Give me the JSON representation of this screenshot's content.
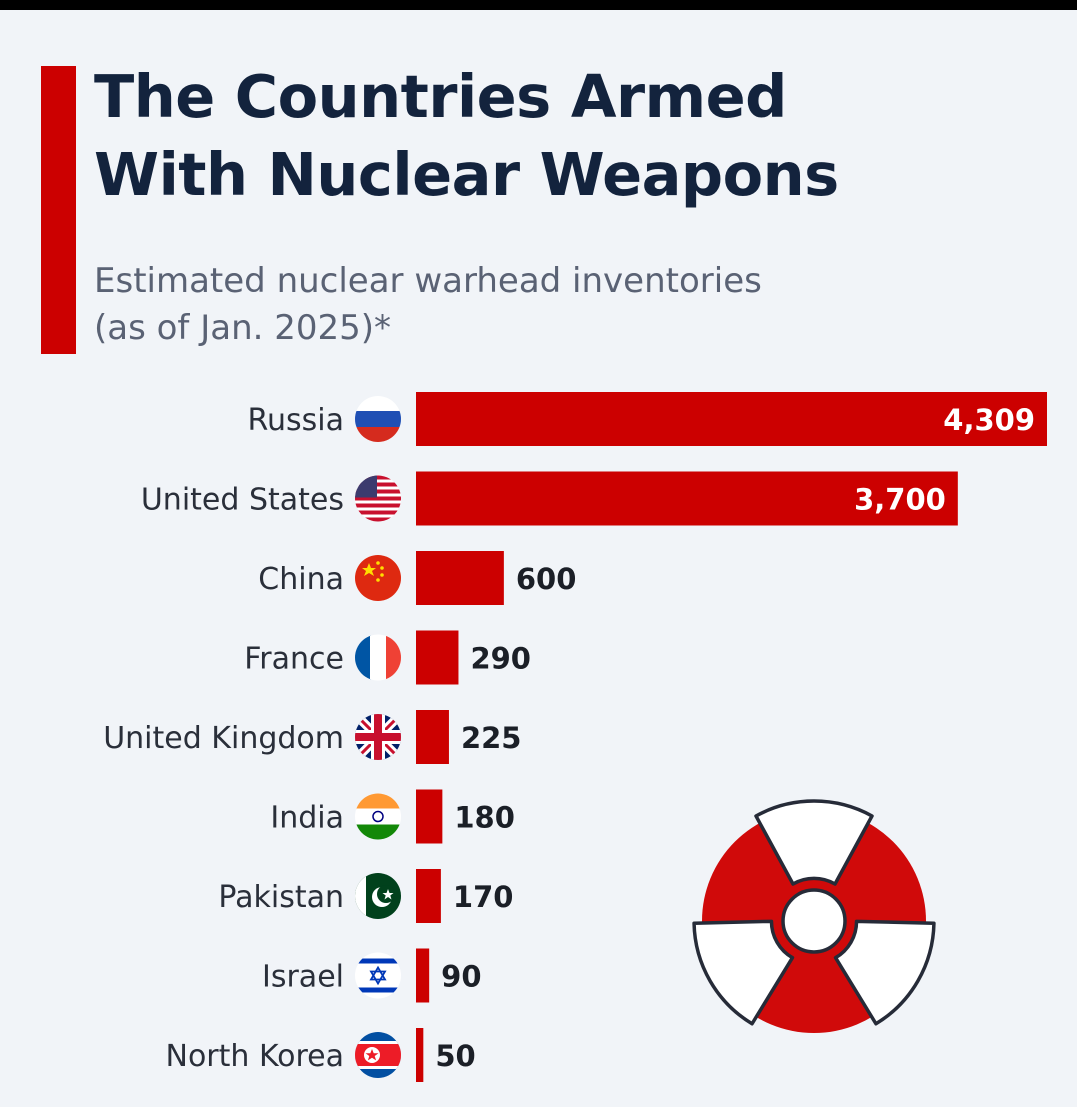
{
  "title_line1": "The Countries Armed",
  "title_line2": "With Nuclear Weapons",
  "subtitle_line1": "Estimated nuclear warhead inventories",
  "subtitle_line2": "(as of Jan. 2025)*",
  "colors": {
    "bar": "#cc0000",
    "title": "#13233d",
    "subtitle": "#5a6274",
    "background": "#f1f4f8"
  },
  "chart_data": {
    "type": "bar",
    "orientation": "horizontal",
    "categories": [
      "Russia",
      "United States",
      "China",
      "France",
      "United Kingdom",
      "India",
      "Pakistan",
      "Israel",
      "North Korea"
    ],
    "values": [
      4309,
      3700,
      600,
      290,
      225,
      180,
      170,
      90,
      50
    ],
    "value_labels": [
      "4,309",
      "3,700",
      "600",
      "290",
      "225",
      "180",
      "170",
      "90",
      "50"
    ],
    "flag_icons": [
      "russia-flag-icon",
      "usa-flag-icon",
      "china-flag-icon",
      "france-flag-icon",
      "uk-flag-icon",
      "india-flag-icon",
      "pakistan-flag-icon",
      "israel-flag-icon",
      "north-korea-flag-icon"
    ],
    "xlim": [
      0,
      4309
    ],
    "grid": false,
    "legend": "none",
    "decoration": "radiation-symbol-icon"
  }
}
